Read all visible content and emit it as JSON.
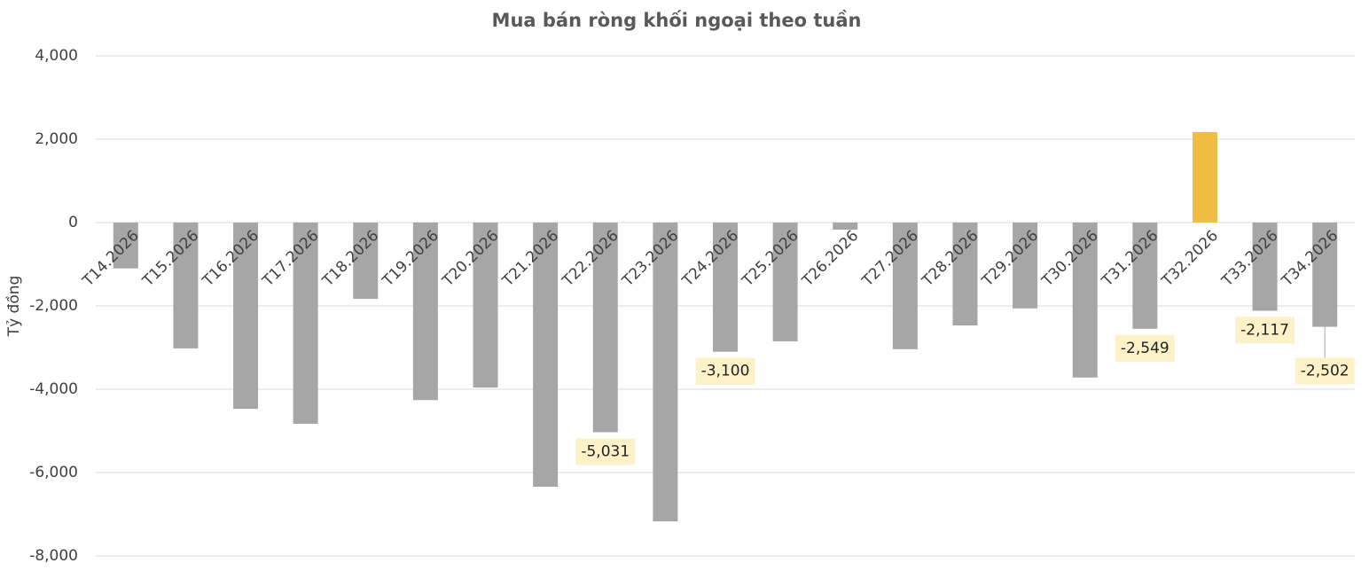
{
  "chart_data": {
    "type": "bar",
    "title": "Mua bán ròng khối ngoại theo tuần",
    "y_label": "Tỷ đồng",
    "categories": [
      "T14.2026",
      "T15.2026",
      "T16.2026",
      "T17.2026",
      "T18.2026",
      "T19.2026",
      "T20.2026",
      "T21.2026",
      "T22.2026",
      "T23.2026",
      "T24.2026",
      "T25.2026",
      "T26.2026",
      "T27.2026",
      "T28.2026",
      "T29.2026",
      "T30.2026",
      "T31.2026",
      "T32.2026",
      "T33.2026",
      "T34.2026"
    ],
    "values": [
      -1100,
      -3020,
      -4470,
      -4830,
      -1830,
      -4260,
      -3960,
      -6340,
      -5031,
      -7170,
      -3100,
      -2850,
      -170,
      -3040,
      -2470,
      -2060,
      -3720,
      -2549,
      2170,
      -2117,
      -2502
    ],
    "value_labels": [
      null,
      null,
      null,
      null,
      null,
      null,
      null,
      null,
      "-5,031",
      null,
      "-3,100",
      null,
      null,
      null,
      null,
      null,
      null,
      "-2,549",
      null,
      "-2,117",
      "-2,502"
    ],
    "colors": [
      "#a6a6a6",
      "#a6a6a6",
      "#a6a6a6",
      "#a6a6a6",
      "#a6a6a6",
      "#a6a6a6",
      "#a6a6a6",
      "#a6a6a6",
      "#a6a6a6",
      "#a6a6a6",
      "#a6a6a6",
      "#a6a6a6",
      "#a6a6a6",
      "#a6a6a6",
      "#a6a6a6",
      "#a6a6a6",
      "#a6a6a6",
      "#a6a6a6",
      "#f0bc42",
      "#a6a6a6",
      "#a6a6a6"
    ],
    "ylim": [
      -8000,
      4000
    ],
    "yticks": [
      {
        "value": -8000,
        "label": "-8,000"
      },
      {
        "value": -6000,
        "label": "-6,000"
      },
      {
        "value": -4000,
        "label": "-4,000"
      },
      {
        "value": -2000,
        "label": "-2,000"
      },
      0,
      {
        "value": 2000,
        "label": "2,000"
      },
      {
        "value": 4000,
        "label": "4,000"
      }
    ],
    "grid": true
  }
}
